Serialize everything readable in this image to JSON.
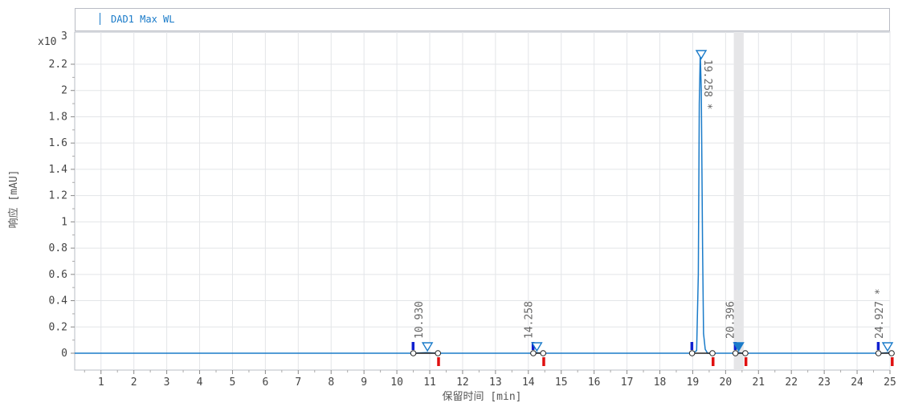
{
  "legend": {
    "label": "DAD1 Max WL"
  },
  "chart_data": {
    "type": "line",
    "title": "",
    "xlabel": "保留时间 [min]",
    "ylabel": "响应 [mAU]",
    "y_multiplier": "x10",
    "y_exponent": "3",
    "xlim": [
      0.2,
      25
    ],
    "ylim": [
      -0.13,
      2.45
    ],
    "x_ticks": [
      1,
      2,
      3,
      4,
      5,
      6,
      7,
      8,
      9,
      10,
      11,
      12,
      13,
      14,
      15,
      16,
      17,
      18,
      19,
      20,
      21,
      22,
      23,
      24,
      25
    ],
    "y_ticks": [
      0,
      0.2,
      0.4,
      0.6,
      0.8,
      1,
      1.2,
      1.4,
      1.6,
      1.8,
      2,
      2.2
    ],
    "y_tick_labels": [
      "0",
      "0.2",
      "0.4",
      "0.6",
      "0.8",
      "1",
      "1.2",
      "1.4",
      "1.6",
      "1.8",
      "2",
      "2.2"
    ],
    "grid": true,
    "highlight_band": [
      20.25,
      20.55
    ],
    "series": [
      {
        "name": "DAD1 Max WL",
        "color": "#1a7bc9",
        "x": [
          0.2,
          10.5,
          10.9,
          11.2,
          14.1,
          14.25,
          14.4,
          19.0,
          19.12,
          19.17,
          19.2,
          19.23,
          19.26,
          19.28,
          19.3,
          19.33,
          19.38,
          19.45,
          20.3,
          20.4,
          20.5,
          24.7,
          24.95,
          25
        ],
        "y": [
          0,
          0,
          0.005,
          0,
          0,
          0.005,
          0,
          0,
          0.02,
          0.6,
          1.9,
          2.28,
          2.0,
          1.4,
          0.8,
          0.15,
          0.03,
          0,
          0,
          0.005,
          0,
          0,
          0.005,
          0.01
        ]
      }
    ],
    "peaks": [
      {
        "rt": "10.930",
        "label": "10.930",
        "x": 10.93,
        "start": 10.5,
        "end": 11.25,
        "star": false,
        "filled": false
      },
      {
        "rt": "14.258",
        "label": "14.258",
        "x": 14.258,
        "start": 14.15,
        "end": 14.45,
        "star": false,
        "filled": false
      },
      {
        "rt": "19.258",
        "label": "19.258 *",
        "x": 19.258,
        "start": 18.98,
        "end": 19.6,
        "star": true,
        "filled": false
      },
      {
        "rt": "20.396",
        "label": "20.396",
        "x": 20.396,
        "start": 20.3,
        "end": 20.6,
        "star": false,
        "filled": true
      },
      {
        "rt": "24.927",
        "label": "24.927 *",
        "x": 24.927,
        "start": 24.65,
        "end": 25.05,
        "star": true,
        "filled": false
      }
    ]
  }
}
